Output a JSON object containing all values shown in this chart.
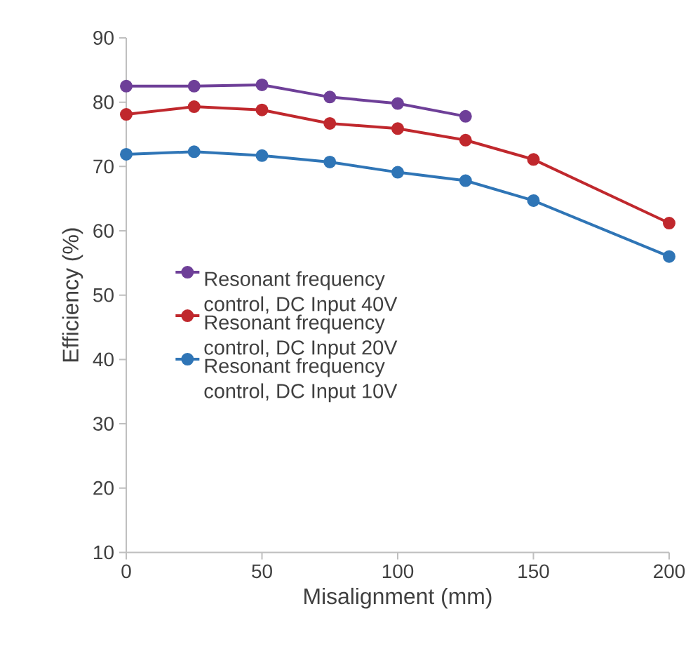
{
  "chart_data": {
    "type": "line",
    "xlabel": "Misalignment (mm)",
    "ylabel": "Efficiency (%)",
    "xlim": [
      0,
      200
    ],
    "xticks": [
      0,
      50,
      100,
      150,
      200
    ],
    "ylim": [
      10,
      90
    ],
    "yticks": [
      10,
      20,
      30,
      40,
      50,
      60,
      70,
      80,
      90
    ],
    "grid": false,
    "legend": "bottom",
    "marker": "circle",
    "line_style": "solid",
    "series": [
      {
        "name": "Resonant frequency control, DC Input 40V",
        "color": "#6e3f98",
        "x": [
          0,
          25,
          50,
          75,
          100,
          125
        ],
        "values": [
          82.5,
          82.5,
          82.7,
          80.8,
          79.8,
          77.8
        ]
      },
      {
        "name": "Resonant frequency control, DC Input 20V",
        "color": "#c0282d",
        "x": [
          0,
          25,
          50,
          75,
          100,
          125,
          150,
          200
        ],
        "values": [
          78.1,
          79.3,
          78.8,
          76.7,
          75.9,
          74.1,
          71.1,
          61.2
        ]
      },
      {
        "name": "Resonant frequency control, DC Input 10V",
        "color": "#2f75b6",
        "x": [
          0,
          25,
          50,
          75,
          100,
          125,
          150,
          200
        ],
        "values": [
          71.9,
          72.3,
          71.7,
          70.7,
          69.1,
          67.8,
          64.7,
          56.0
        ]
      }
    ]
  }
}
